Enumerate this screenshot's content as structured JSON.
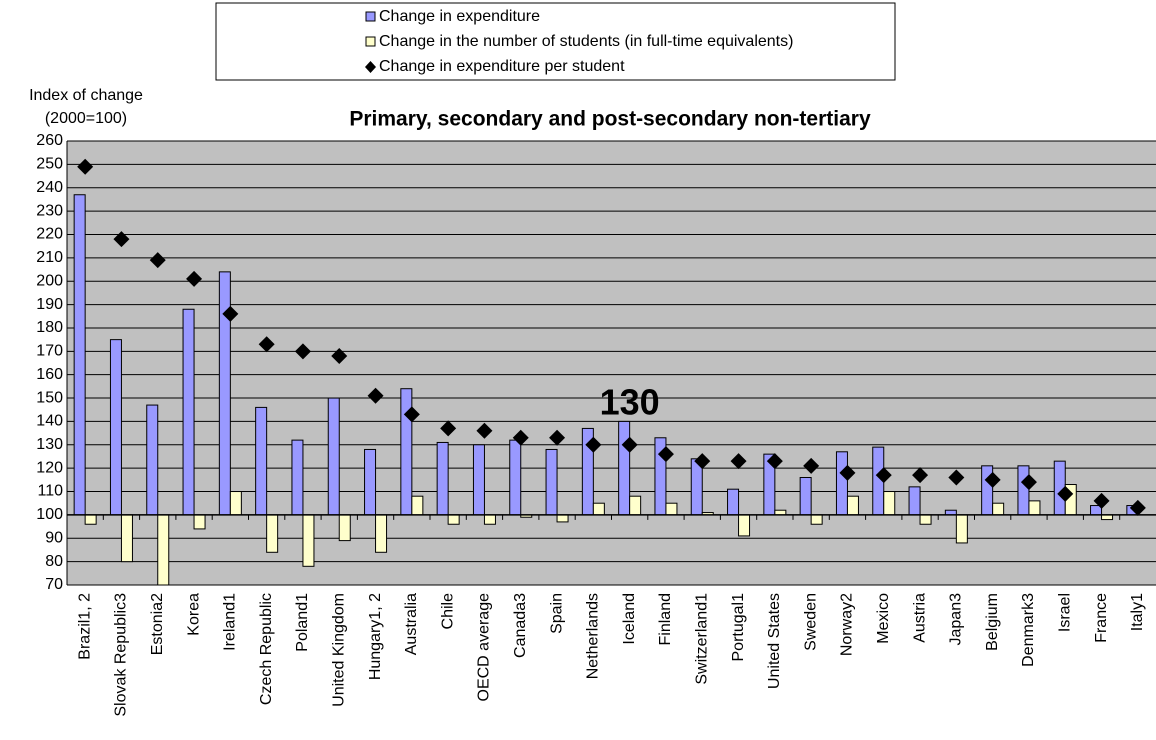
{
  "chart_data": {
    "type": "bar",
    "title": "Primary, secondary and post-secondary non-tertiary",
    "y_label": [
      "Index of change",
      "(2000=100)"
    ],
    "annotation": {
      "text": "130",
      "category_index": 15
    },
    "baseline": 100,
    "categories": [
      "Brazil1, 2",
      "Slovak Republic3",
      "Estonia2",
      "Korea",
      "Ireland1",
      "Czech Republic",
      "Poland1",
      "United Kingdom",
      "Hungary1, 2",
      "Australia",
      "Chile",
      "OECD average",
      "Canada3",
      "Spain",
      "Netherlands",
      "Iceland",
      "Finland",
      "Switzerland1",
      "Portugal1",
      "United States",
      "Sweden",
      "Norway2",
      "Mexico",
      "Austria",
      "Japan3",
      "Belgium",
      "Denmark3",
      "Israel",
      "France",
      "Italy1"
    ],
    "series": [
      {
        "name": "Change in expenditure",
        "color": "#9999ff",
        "mark": "bar",
        "values": [
          237,
          175,
          147,
          188,
          204,
          146,
          132,
          150,
          128,
          154,
          131,
          130,
          132,
          128,
          137,
          140,
          133,
          124,
          111,
          126,
          116,
          127,
          129,
          112,
          102,
          121,
          121,
          123,
          104,
          104
        ]
      },
      {
        "name": "Change in the number of students (in full-time equivalents)",
        "color": "#ffffcc",
        "mark": "bar",
        "values": [
          96,
          80,
          70,
          94,
          110,
          84,
          78,
          89,
          84,
          108,
          96,
          96,
          99,
          97,
          105,
          108,
          105,
          101,
          91,
          102,
          96,
          108,
          110,
          96,
          88,
          105,
          106,
          113,
          98,
          100
        ]
      },
      {
        "name": "Change in expenditure per student",
        "color": "#000000",
        "mark": "diamond",
        "values": [
          249,
          218,
          209,
          201,
          186,
          173,
          170,
          168,
          151,
          143,
          137,
          136,
          133,
          133,
          130,
          130,
          126,
          123,
          123,
          123,
          121,
          118,
          117,
          117,
          116,
          115,
          114,
          109,
          106,
          103
        ]
      }
    ],
    "ylim": [
      70,
      260
    ],
    "yticks": [
      70,
      80,
      90,
      100,
      110,
      120,
      130,
      140,
      150,
      160,
      170,
      180,
      190,
      200,
      210,
      220,
      230,
      240,
      250,
      260
    ],
    "grid": true
  }
}
